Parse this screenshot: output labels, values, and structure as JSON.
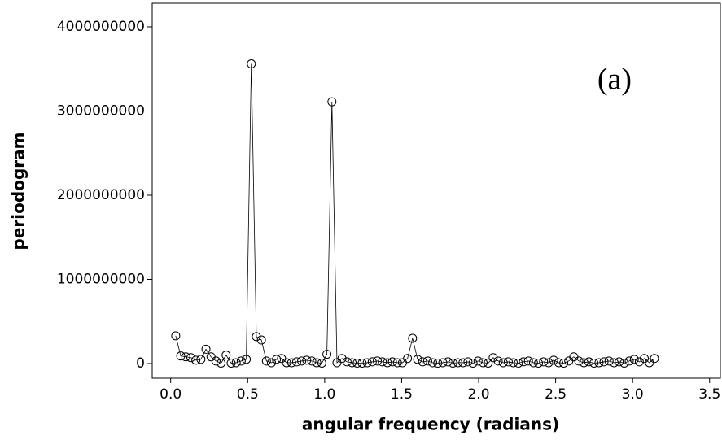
{
  "chart_data": {
    "type": "line",
    "xlabel": "angular frequency (radians)",
    "ylabel": "periodogram",
    "annotation": "(a)",
    "x": [
      0.0327,
      0.0654,
      0.0982,
      0.1309,
      0.1636,
      0.1963,
      0.2291,
      0.2618,
      0.2945,
      0.3272,
      0.36,
      0.3927,
      0.4254,
      0.4581,
      0.4909,
      0.5236,
      0.5563,
      0.589,
      0.6218,
      0.6545,
      0.6872,
      0.7199,
      0.7527,
      0.7854,
      0.8181,
      0.8508,
      0.8836,
      0.9163,
      0.949,
      0.9817,
      1.0145,
      1.0472,
      1.0799,
      1.1126,
      1.1454,
      1.1781,
      1.2108,
      1.2435,
      1.2763,
      1.309,
      1.3417,
      1.3744,
      1.4072,
      1.4399,
      1.4726,
      1.5053,
      1.5381,
      1.5708,
      1.6035,
      1.6362,
      1.669,
      1.7017,
      1.7344,
      1.7671,
      1.7999,
      1.8326,
      1.8653,
      1.898,
      1.9308,
      1.9635,
      1.9962,
      2.0289,
      2.0617,
      2.0944,
      2.1271,
      2.1598,
      2.1926,
      2.2253,
      2.258,
      2.2907,
      2.3235,
      2.3562,
      2.3889,
      2.4216,
      2.4544,
      2.4871,
      2.5198,
      2.5525,
      2.5853,
      2.618,
      2.6507,
      2.6834,
      2.7162,
      2.7489,
      2.7816,
      2.8143,
      2.8471,
      2.8798,
      2.9125,
      2.9452,
      2.978,
      3.0107,
      3.0434,
      3.0761,
      3.1089,
      3.1416
    ],
    "values": [
      330000000,
      90000000,
      80000000,
      70000000,
      40000000,
      50000000,
      170000000,
      80000000,
      30000000,
      5000000,
      100000000,
      5000000,
      10000000,
      30000000,
      50000000,
      3560000000,
      320000000,
      280000000,
      30000000,
      10000000,
      50000000,
      60000000,
      10000000,
      10000000,
      20000000,
      30000000,
      40000000,
      30000000,
      10000000,
      5000000,
      110000000,
      3110000000,
      10000000,
      60000000,
      20000000,
      10000000,
      5000000,
      5000000,
      10000000,
      20000000,
      30000000,
      20000000,
      10000000,
      20000000,
      10000000,
      10000000,
      60000000,
      300000000,
      50000000,
      20000000,
      30000000,
      10000000,
      5000000,
      10000000,
      20000000,
      5000000,
      10000000,
      10000000,
      20000000,
      5000000,
      30000000,
      10000000,
      5000000,
      70000000,
      30000000,
      10000000,
      20000000,
      10000000,
      5000000,
      20000000,
      30000000,
      10000000,
      5000000,
      20000000,
      10000000,
      40000000,
      10000000,
      5000000,
      30000000,
      80000000,
      30000000,
      10000000,
      20000000,
      5000000,
      10000000,
      20000000,
      30000000,
      10000000,
      20000000,
      5000000,
      30000000,
      50000000,
      20000000,
      60000000,
      10000000,
      60000000
    ],
    "color": "#000000",
    "xlim": [
      -0.12,
      3.57
    ],
    "xticks": [
      {
        "value": 0,
        "label": "0.0"
      },
      {
        "value": 0.5,
        "label": "0.5"
      },
      {
        "value": 1,
        "label": "1.0"
      },
      {
        "value": 1.5,
        "label": "1.5"
      },
      {
        "value": 2,
        "label": "2.0"
      },
      {
        "value": 2.5,
        "label": "2.5"
      },
      {
        "value": 3,
        "label": "3.0"
      },
      {
        "value": 3.5,
        "label": "3.5"
      }
    ],
    "ylim": [
      -174000000,
      4280000000
    ],
    "yticks": [
      0,
      1000000000,
      2000000000,
      3000000000,
      4000000000
    ]
  }
}
